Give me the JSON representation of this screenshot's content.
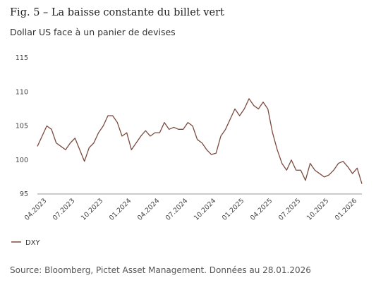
{
  "chart_data": {
    "type": "line",
    "title": "Fig. 5 – La baisse constante du billet vert",
    "subtitle": "Dollar US face à un panier de devises",
    "source": "Source: Bloomberg, Pictet Asset Management. Données au 28.01.2026",
    "categories": [
      null,
      null,
      "04.2023",
      null,
      null,
      null,
      null,
      null,
      "07.2023",
      null,
      null,
      null,
      null,
      null,
      "10.2023",
      null,
      null,
      null,
      null,
      null,
      "01.2024",
      null,
      null,
      null,
      null,
      null,
      "04.2024",
      null,
      null,
      null,
      null,
      null,
      "07.2024",
      null,
      null,
      null,
      null,
      null,
      "10.2024",
      null,
      null,
      null,
      null,
      null,
      "01.2025",
      null,
      null,
      null,
      null,
      null,
      "04.2025",
      null,
      null,
      null,
      null,
      null,
      "07.2025",
      null,
      null,
      null,
      null,
      null,
      "10.2025",
      null,
      null,
      null,
      null,
      null,
      "01.2026",
      null
    ],
    "series": [
      {
        "name": "DXY",
        "color": "#7b4a3e",
        "values": [
          102.0,
          103.5,
          105.0,
          104.5,
          102.5,
          102.0,
          101.5,
          102.5,
          103.2,
          101.5,
          99.8,
          101.8,
          102.5,
          104.0,
          105.0,
          106.5,
          106.5,
          105.5,
          103.5,
          104.0,
          101.5,
          102.5,
          103.5,
          104.3,
          103.5,
          104.0,
          104.0,
          105.5,
          104.5,
          104.8,
          104.5,
          104.5,
          105.5,
          105.0,
          103.0,
          102.5,
          101.5,
          100.8,
          101.0,
          103.5,
          104.5,
          106.0,
          107.5,
          106.5,
          107.5,
          109.0,
          108.0,
          107.5,
          108.5,
          107.5,
          104.0,
          101.5,
          99.5,
          98.5,
          100.0,
          98.5,
          98.5,
          97.0,
          99.5,
          98.5,
          98.0,
          97.5,
          97.8,
          98.5,
          99.5,
          99.8,
          99.0,
          98.0,
          98.8,
          96.5
        ]
      }
    ],
    "ylim": [
      95,
      115
    ],
    "yticks": [
      95,
      100,
      105,
      110,
      115
    ],
    "grid": false
  }
}
